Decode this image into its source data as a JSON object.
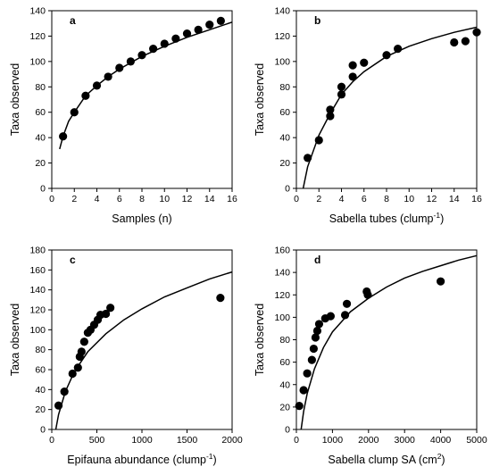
{
  "chart_data": [
    {
      "panel_label": "a",
      "type": "scatter",
      "xlabel": "Samples (n)",
      "ylabel": "Taxa observed",
      "xlim": [
        0,
        16
      ],
      "ylim": [
        0,
        140
      ],
      "xticks": [
        0,
        2,
        4,
        6,
        8,
        10,
        12,
        14,
        16
      ],
      "yticks": [
        0,
        20,
        40,
        60,
        80,
        100,
        120,
        140
      ],
      "x": [
        1,
        2,
        3,
        4,
        5,
        6,
        7,
        8,
        9,
        10,
        11,
        12,
        13,
        14,
        15
      ],
      "y": [
        41,
        60,
        73,
        81,
        88,
        95,
        100,
        105,
        110,
        114,
        118,
        122,
        125,
        129,
        132
      ],
      "fit_curve": {
        "x": [
          0.7,
          1,
          1.5,
          2,
          3,
          4,
          5,
          6,
          8,
          10,
          12,
          14,
          16
        ],
        "y": [
          31,
          41,
          53,
          60,
          73,
          81,
          88,
          94,
          104,
          112,
          119,
          125,
          131
        ]
      }
    },
    {
      "panel_label": "b",
      "type": "scatter",
      "xlabel": "Sabella tubes (clump",
      "xlabel_sup": "-1",
      "xlabel_end": ")",
      "ylabel": "Taxa observed",
      "xlim": [
        0,
        16
      ],
      "ylim": [
        0,
        140
      ],
      "xticks": [
        0,
        2,
        4,
        6,
        8,
        10,
        12,
        14,
        16
      ],
      "yticks": [
        0,
        20,
        40,
        60,
        80,
        100,
        120,
        140
      ],
      "x": [
        1,
        2,
        3,
        3,
        4,
        4,
        5,
        5,
        6,
        8,
        9,
        14,
        15,
        16
      ],
      "y": [
        24,
        38,
        57,
        62,
        74,
        80,
        88,
        97,
        99,
        105,
        110,
        115,
        116,
        123
      ],
      "fit_curve": {
        "x": [
          0.6,
          1,
          2,
          3,
          4,
          5,
          6,
          8,
          10,
          12,
          14,
          16
        ],
        "y": [
          0,
          17,
          42,
          59,
          74,
          84,
          92,
          104,
          112,
          118,
          123,
          127
        ]
      }
    },
    {
      "panel_label": "c",
      "type": "scatter",
      "xlabel": "Epifauna abundance (clump",
      "xlabel_sup": "-1",
      "xlabel_end": ")",
      "ylabel": "Taxa observed",
      "xlim": [
        0,
        2000
      ],
      "ylim": [
        0,
        180
      ],
      "xticks": [
        0,
        500,
        1000,
        1500,
        2000
      ],
      "yticks": [
        0,
        20,
        40,
        60,
        80,
        100,
        120,
        140,
        160,
        180
      ],
      "x": [
        75,
        140,
        230,
        290,
        310,
        330,
        360,
        400,
        430,
        470,
        510,
        540,
        600,
        650,
        1870
      ],
      "y": [
        24,
        38,
        56,
        62,
        73,
        78,
        88,
        97,
        100,
        105,
        110,
        115,
        116,
        122,
        132
      ],
      "fit_curve": {
        "x": [
          45,
          75,
          150,
          250,
          400,
          600,
          800,
          1000,
          1250,
          1500,
          1750,
          2000
        ],
        "y": [
          0,
          15,
          38,
          58,
          78,
          96,
          110,
          121,
          133,
          142,
          151,
          158
        ]
      }
    },
    {
      "panel_label": "d",
      "type": "scatter",
      "xlabel": "Sabella clump SA (cm",
      "xlabel_sup": "2",
      "xlabel_end": ")",
      "ylabel": "Taxa observed",
      "xlim": [
        0,
        5000
      ],
      "ylim": [
        0,
        160
      ],
      "xticks": [
        0,
        1000,
        2000,
        3000,
        4000,
        5000
      ],
      "yticks": [
        0,
        20,
        40,
        60,
        80,
        100,
        120,
        140,
        160
      ],
      "x": [
        80,
        200,
        300,
        430,
        480,
        530,
        580,
        630,
        800,
        950,
        1350,
        1400,
        1950,
        1980,
        4000
      ],
      "y": [
        21,
        35,
        50,
        62,
        72,
        82,
        88,
        94,
        99,
        101,
        102,
        112,
        123,
        120,
        132
      ],
      "fit_curve": {
        "x": [
          130,
          200,
          300,
          500,
          750,
          1000,
          1500,
          2000,
          2500,
          3000,
          3500,
          4000,
          4500,
          5000
        ],
        "y": [
          0,
          16,
          32,
          54,
          73,
          87,
          105,
          117,
          127,
          135,
          141,
          146,
          151,
          155
        ]
      }
    }
  ]
}
